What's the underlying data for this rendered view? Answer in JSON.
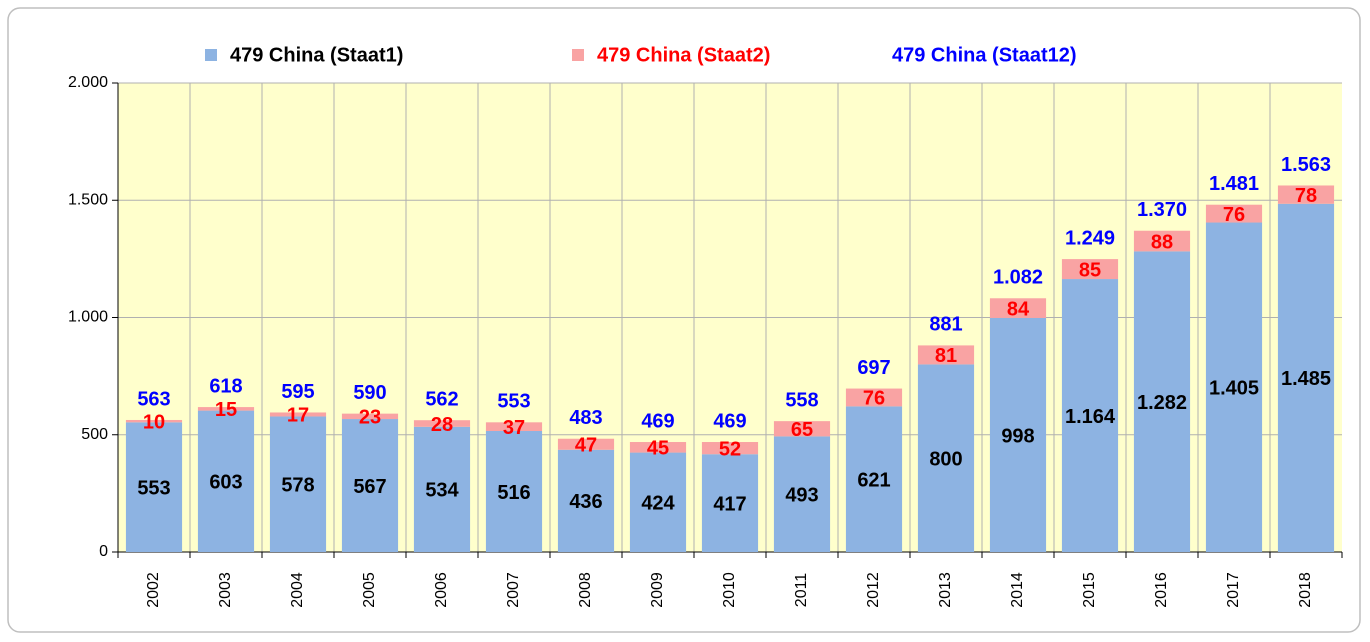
{
  "chart_data": {
    "type": "stacked-bar",
    "categories": [
      "2002",
      "2003",
      "2004",
      "2005",
      "2006",
      "2007",
      "2008",
      "2009",
      "2010",
      "2011",
      "2012",
      "2013",
      "2014",
      "2015",
      "2016",
      "2017",
      "2018"
    ],
    "series": [
      {
        "name": "479 China (Staat1)",
        "color": "#8db3e2",
        "label_color": "#000000",
        "values": [
          553,
          603,
          578,
          567,
          534,
          516,
          436,
          424,
          417,
          493,
          621,
          800,
          998,
          1164,
          1282,
          1405,
          1485
        ],
        "value_labels": [
          "553",
          "603",
          "578",
          "567",
          "534",
          "516",
          "436",
          "424",
          "417",
          "493",
          "621",
          "800",
          "998",
          "1.164",
          "1.282",
          "1.405",
          "1.485"
        ]
      },
      {
        "name": "479 China (Staat2)",
        "color": "#f9a3a3",
        "label_color": "#ff0000",
        "values": [
          10,
          15,
          17,
          23,
          28,
          37,
          47,
          45,
          52,
          65,
          76,
          81,
          84,
          85,
          88,
          76,
          78
        ]
      }
    ],
    "totals": {
      "name": "479 China (Staat12)",
      "label_color": "#0000ff",
      "values": [
        563,
        618,
        595,
        590,
        562,
        553,
        483,
        469,
        469,
        558,
        697,
        881,
        1082,
        1249,
        1370,
        1481,
        1563
      ],
      "value_labels": [
        "563",
        "618",
        "595",
        "590",
        "562",
        "553",
        "483",
        "469",
        "469",
        "558",
        "697",
        "881",
        "1.082",
        "1.249",
        "1.370",
        "1.481",
        "1.563"
      ]
    },
    "ylim": [
      0,
      2000
    ],
    "yticks": [
      0,
      500,
      {
        "value": 1000,
        "label": "1.000"
      },
      {
        "value": 1500,
        "label": "1.500"
      },
      {
        "value": 2000,
        "label": "2.000"
      }
    ],
    "grid": true,
    "plot_background": "#ffffcc"
  }
}
